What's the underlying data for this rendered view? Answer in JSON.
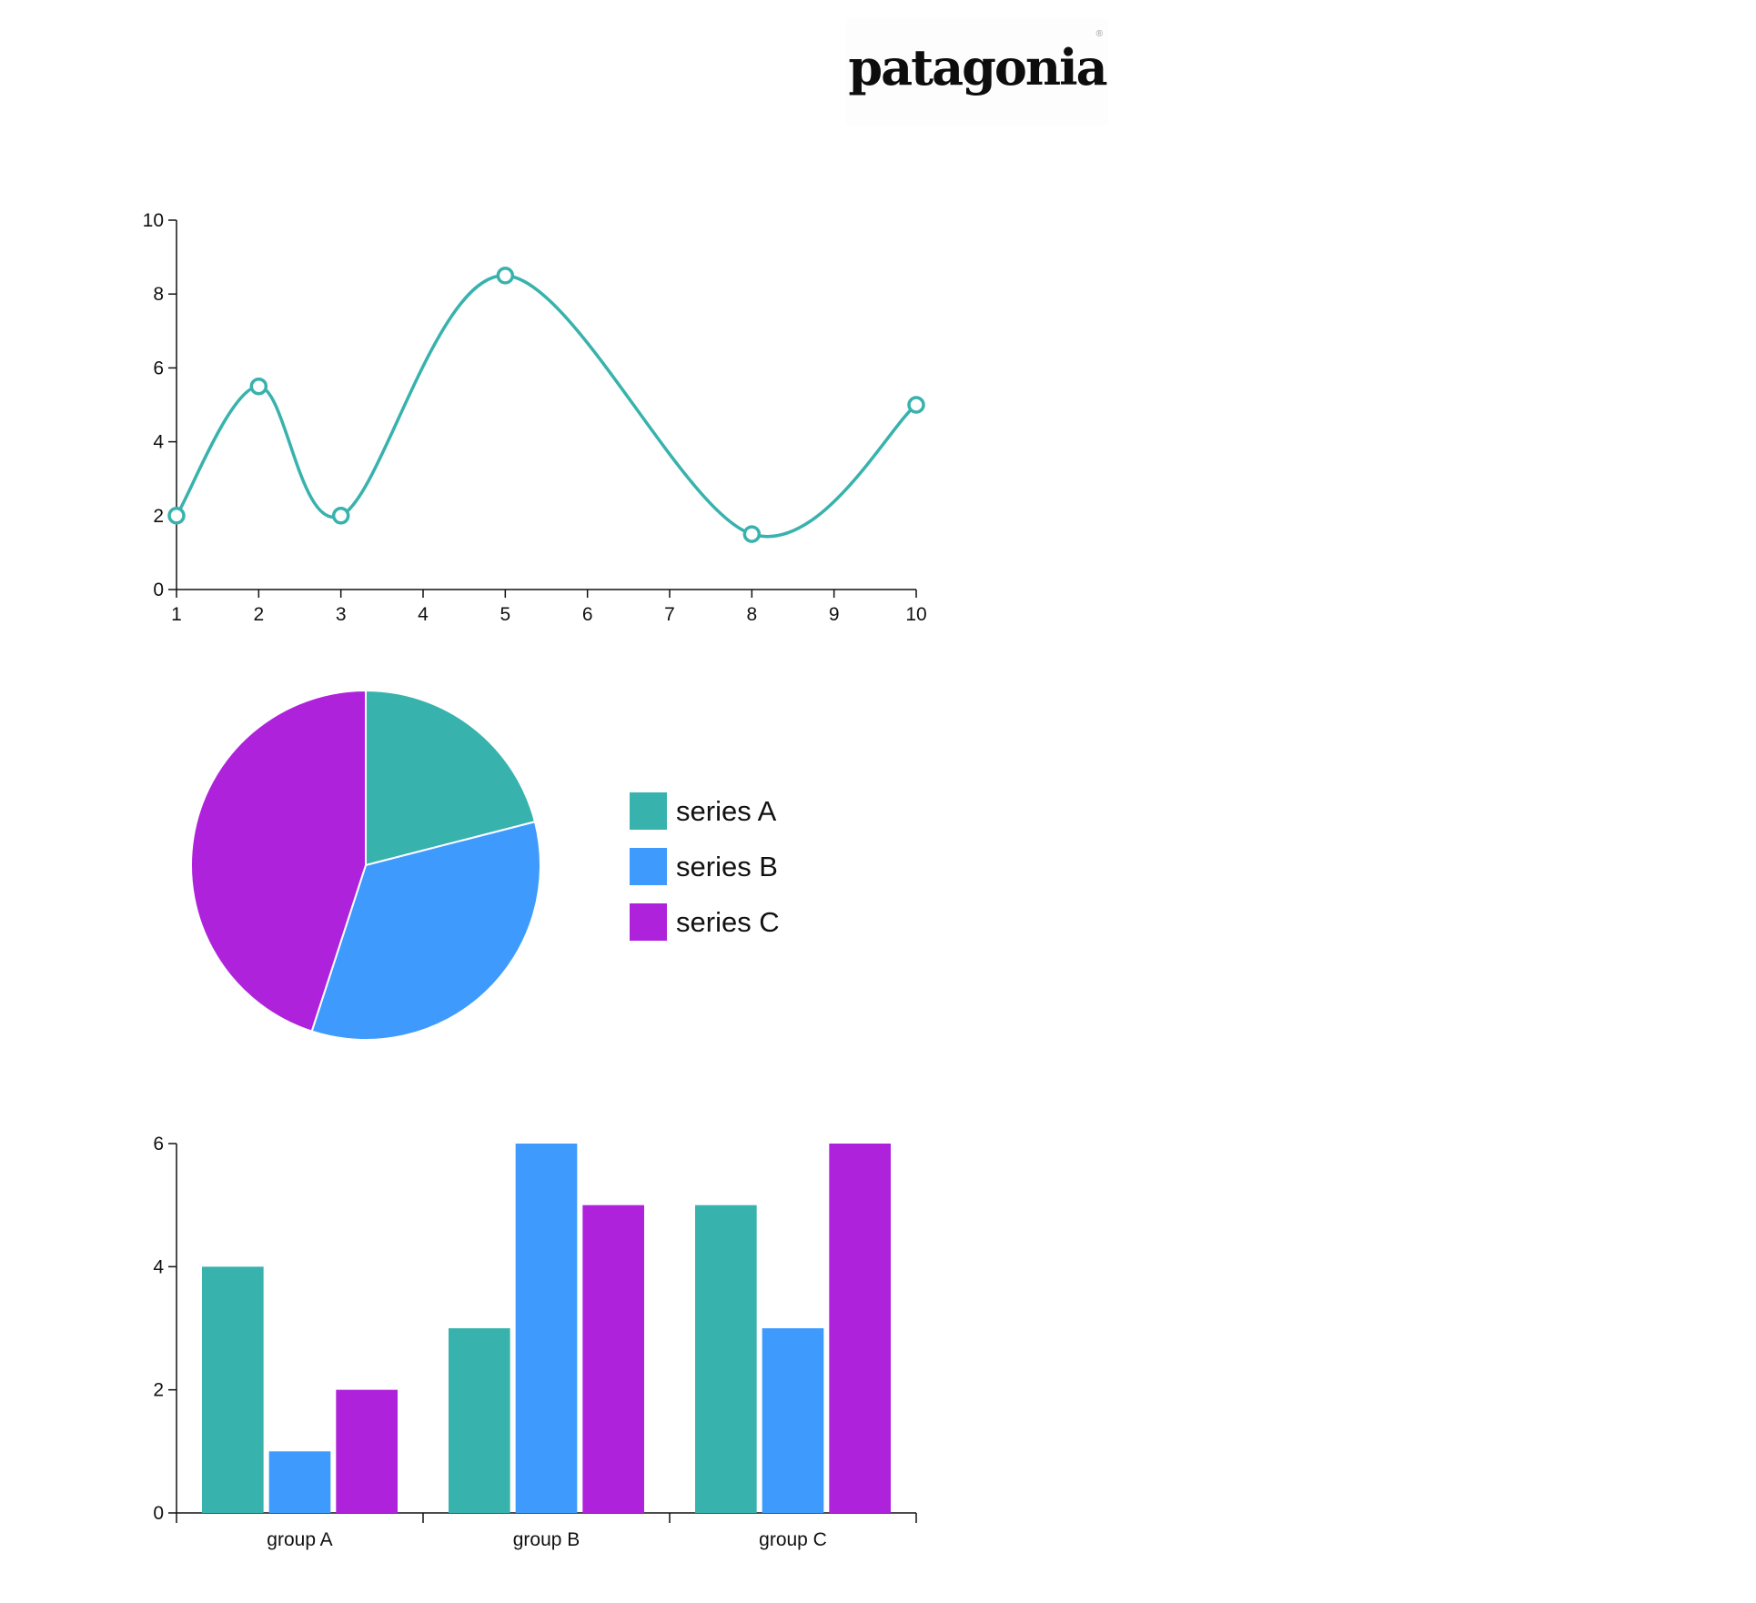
{
  "logo": {
    "text": "patagonia",
    "reg": "®"
  },
  "colors": {
    "a": "#38B2AD",
    "b": "#3E9BFD",
    "c": "#AF22DB",
    "axis": "#111111"
  },
  "charts": [
    {
      "chart_data": {
        "type": "line",
        "curve": "smooth",
        "x": [
          1,
          2,
          3,
          5,
          8,
          10
        ],
        "y": [
          2,
          5.5,
          2,
          8.5,
          1.5,
          5
        ],
        "xlim": [
          1,
          10
        ],
        "ylim": [
          0,
          10
        ],
        "xticks": [
          1,
          2,
          3,
          4,
          5,
          6,
          7,
          8,
          9,
          10
        ],
        "yticks": [
          0,
          2,
          4,
          6,
          8,
          10
        ],
        "color": "#38B2AD",
        "markers": "hollow-circle"
      }
    },
    {
      "chart_data": {
        "type": "pie",
        "labels": [
          "series A",
          "series B",
          "series C"
        ],
        "values": [
          21,
          34,
          45
        ],
        "colors": [
          "#38B2AD",
          "#3E9BFD",
          "#AF22DB"
        ],
        "legend": "right"
      }
    },
    {
      "chart_data": {
        "type": "bar",
        "categories": [
          "group A",
          "group B",
          "group C"
        ],
        "series": [
          {
            "name": "series A",
            "values": [
              4,
              3,
              5
            ],
            "color": "#38B2AD"
          },
          {
            "name": "series B",
            "values": [
              1,
              6,
              3
            ],
            "color": "#3E9BFD"
          },
          {
            "name": "series C",
            "values": [
              2,
              5,
              6
            ],
            "color": "#AF22DB"
          }
        ],
        "ylim": [
          0,
          6
        ],
        "yticks": [
          0,
          2,
          4,
          6
        ]
      }
    }
  ]
}
